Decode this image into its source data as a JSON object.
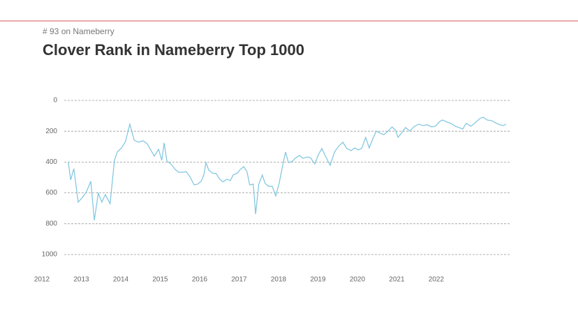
{
  "chart_data": {
    "type": "line",
    "subtitle": "# 93 on Nameberry",
    "title": "Clover Rank in Nameberry Top 1000",
    "x": [
      2012.67,
      2012.73,
      2012.81,
      2012.92,
      2013.03,
      2013.13,
      2013.24,
      2013.33,
      2013.43,
      2013.52,
      2013.61,
      2013.73,
      2013.84,
      2013.91,
      2014.02,
      2014.12,
      2014.23,
      2014.34,
      2014.44,
      2014.57,
      2014.67,
      2014.76,
      2014.85,
      2014.96,
      2015.04,
      2015.1,
      2015.17,
      2015.27,
      2015.38,
      2015.47,
      2015.58,
      2015.66,
      2015.75,
      2015.86,
      2015.95,
      2016.04,
      2016.11,
      2016.16,
      2016.23,
      2016.32,
      2016.42,
      2016.51,
      2016.6,
      2016.69,
      2016.78,
      2016.85,
      2016.96,
      2017.03,
      2017.12,
      2017.2,
      2017.27,
      2017.36,
      2017.42,
      2017.5,
      2017.59,
      2017.66,
      2017.75,
      2017.84,
      2017.93,
      2018.02,
      2018.11,
      2018.18,
      2018.25,
      2018.34,
      2018.42,
      2018.53,
      2018.62,
      2018.73,
      2018.81,
      2018.92,
      2019.01,
      2019.1,
      2019.19,
      2019.31,
      2019.42,
      2019.52,
      2019.63,
      2019.73,
      2019.84,
      2019.93,
      2020.02,
      2020.11,
      2020.21,
      2020.3,
      2020.39,
      2020.48,
      2020.58,
      2020.67,
      2020.78,
      2020.88,
      2020.97,
      2021.03,
      2021.13,
      2021.22,
      2021.33,
      2021.43,
      2021.56,
      2021.66,
      2021.77,
      2021.88,
      2021.98,
      2022.09,
      2022.16,
      2022.27,
      2022.37,
      2022.48,
      2022.58,
      2022.67,
      2022.76,
      2022.88,
      2022.99,
      2023.1,
      2023.19,
      2023.29,
      2023.4,
      2023.5,
      2023.61,
      2023.7,
      2023.77
    ],
    "series": [
      {
        "name": "Clover",
        "color": "#7cc4de",
        "values": [
          400,
          516,
          443,
          660,
          629,
          593,
          525,
          778,
          602,
          660,
          611,
          670,
          389,
          335,
          308,
          267,
          154,
          258,
          271,
          262,
          281,
          321,
          362,
          317,
          389,
          276,
          394,
          412,
          448,
          466,
          466,
          462,
          493,
          548,
          543,
          525,
          480,
          403,
          452,
          471,
          475,
          511,
          529,
          511,
          520,
          484,
          471,
          448,
          430,
          462,
          548,
          543,
          738,
          543,
          484,
          538,
          557,
          557,
          620,
          534,
          416,
          335,
          403,
          398,
          376,
          357,
          376,
          367,
          371,
          412,
          353,
          312,
          362,
          421,
          335,
          299,
          271,
          312,
          326,
          308,
          321,
          312,
          240,
          308,
          249,
          199,
          213,
          222,
          199,
          172,
          195,
          240,
          208,
          176,
          199,
          172,
          154,
          163,
          158,
          172,
          167,
          136,
          127,
          140,
          149,
          167,
          176,
          186,
          149,
          167,
          145,
          118,
          109,
          127,
          131,
          145,
          158,
          163,
          154
        ]
      }
    ],
    "xlim": [
      2012,
      2023.86
    ],
    "xticks": [
      2012,
      2013,
      2014,
      2015,
      2016,
      2017,
      2018,
      2019,
      2020,
      2021,
      2022
    ],
    "ylim": [
      1000,
      0
    ],
    "yticks": [
      0,
      200,
      400,
      600,
      800,
      1000
    ],
    "grid": true
  }
}
